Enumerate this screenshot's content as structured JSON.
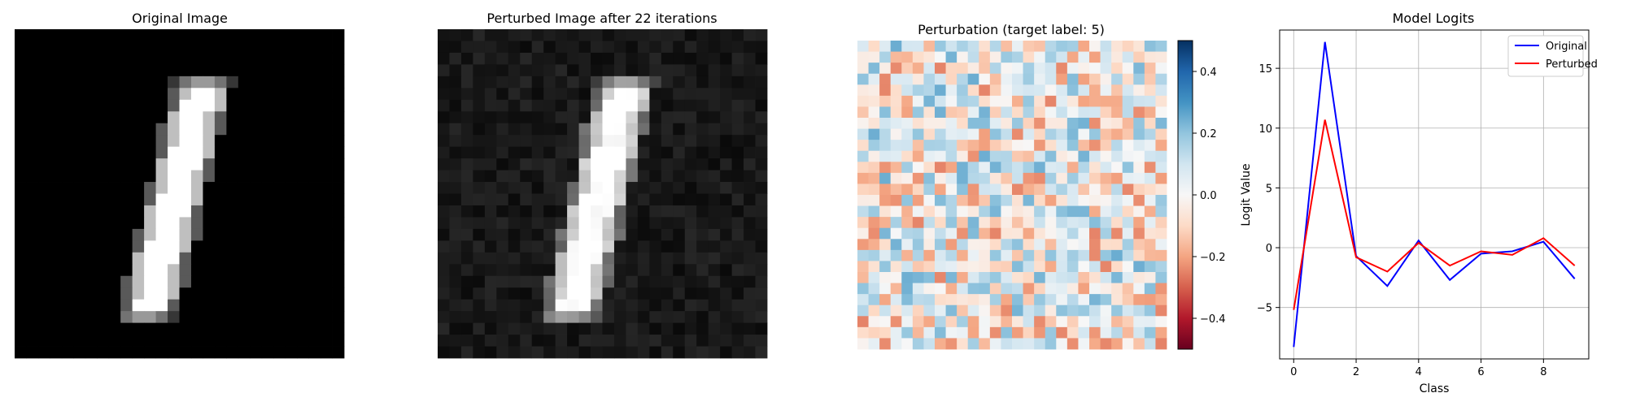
{
  "chart_data": [
    {
      "type": "heatmap",
      "title": "Original Image",
      "colormap": "gray",
      "grid": "28x28",
      "description_values": "MNIST digit 1 drawn as a slanted bright stroke on black background"
    },
    {
      "type": "heatmap",
      "title": "Perturbed Image after 22 iterations",
      "colormap": "gray",
      "grid": "28x28"
    },
    {
      "type": "heatmap",
      "title": "Perturbation (target label: 5)",
      "colormap": "RdBu",
      "grid": "28x28",
      "colorbar": {
        "ticks": [
          "0.4",
          "0.2",
          "0.0",
          "−0.2",
          "−0.4"
        ],
        "tick_values": [
          0.4,
          0.2,
          0.0,
          -0.2,
          -0.4
        ],
        "range": [
          -0.5,
          0.5
        ]
      }
    },
    {
      "type": "line",
      "title": "Model Logits",
      "xlabel": "Class",
      "ylabel": "Logit Value",
      "x": [
        0,
        1,
        2,
        3,
        4,
        5,
        6,
        7,
        8,
        9
      ],
      "xticks": [
        "0",
        "2",
        "4",
        "6",
        "8"
      ],
      "xtick_values": [
        0,
        2,
        4,
        6,
        8
      ],
      "yticks": [
        "15",
        "10",
        "5",
        "0",
        "−5"
      ],
      "ytick_values": [
        15,
        10,
        5,
        0,
        -5
      ],
      "xlim": [
        -0.45,
        9.45
      ],
      "ylim": [
        -9.3,
        18.2
      ],
      "grid": true,
      "legend_position": "top-right",
      "series": [
        {
          "name": "Original",
          "color": "#0000ff",
          "values": [
            -8.3,
            17.2,
            -0.7,
            -3.2,
            0.6,
            -2.7,
            -0.5,
            -0.3,
            0.5,
            -2.6
          ]
        },
        {
          "name": "Perturbed",
          "color": "#ff0000",
          "values": [
            -5.2,
            10.7,
            -0.8,
            -2.0,
            0.4,
            -1.5,
            -0.3,
            -0.6,
            0.8,
            -1.5
          ]
        }
      ]
    }
  ]
}
